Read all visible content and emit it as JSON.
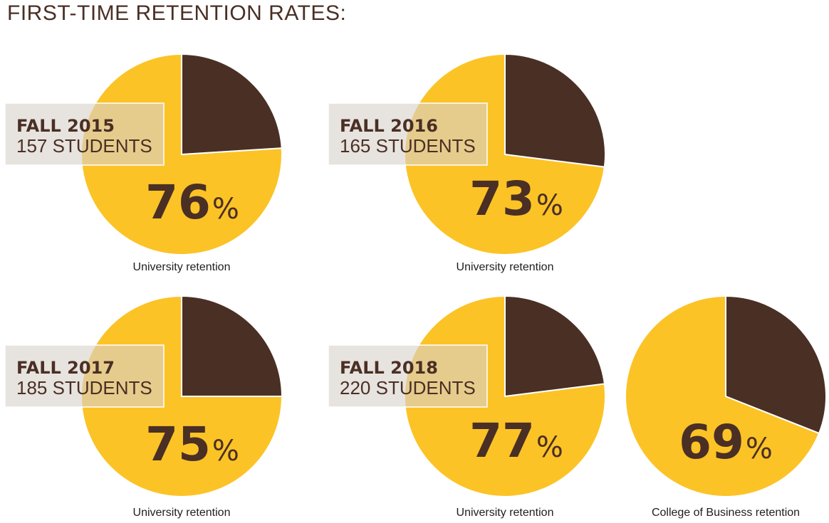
{
  "title": "FIRST-TIME RETENTION RATES:",
  "colors": {
    "retained": "#fcc326",
    "not_retained": "#4a2f25",
    "label_box": "#d8d2cc",
    "text": "#4a2f25"
  },
  "chart_data": [
    {
      "type": "pie",
      "term": "FALL 2015",
      "students": "157 STUDENTS",
      "value_label": "76",
      "unit": "%",
      "caption": "University retention",
      "slices": [
        {
          "value": 76,
          "color": "#fcc326"
        },
        {
          "value": 24,
          "color": "#4a2f25"
        }
      ]
    },
    {
      "type": "pie",
      "term": "FALL 2016",
      "students": "165 STUDENTS",
      "value_label": "73",
      "unit": "%",
      "caption": "University retention",
      "slices": [
        {
          "value": 73,
          "color": "#fcc326"
        },
        {
          "value": 27,
          "color": "#4a2f25"
        }
      ]
    },
    {
      "type": "pie",
      "term": "FALL 2017",
      "students": "185 STUDENTS",
      "value_label": "75",
      "unit": "%",
      "caption": "University retention",
      "slices": [
        {
          "value": 75,
          "color": "#fcc326"
        },
        {
          "value": 25,
          "color": "#4a2f25"
        }
      ]
    },
    {
      "type": "pie",
      "term": "FALL 2018",
      "students": "220 STUDENTS",
      "value_label": "77",
      "unit": "%",
      "caption": "University retention",
      "slices": [
        {
          "value": 77,
          "color": "#fcc326"
        },
        {
          "value": 23,
          "color": "#4a2f25"
        }
      ]
    },
    {
      "type": "pie",
      "term": "",
      "students": "",
      "value_label": "69",
      "unit": "%",
      "caption": "College of Business retention",
      "slices": [
        {
          "value": 69,
          "color": "#fcc326"
        },
        {
          "value": 31,
          "color": "#4a2f25"
        }
      ]
    }
  ]
}
